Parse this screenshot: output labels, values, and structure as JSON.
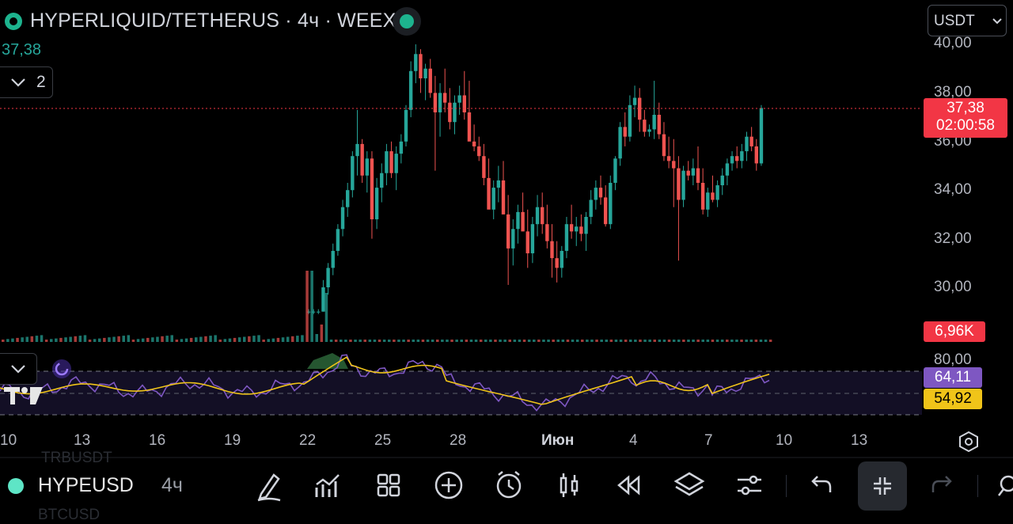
{
  "header": {
    "title": "HYPERLIQUID/TETHERUS · 4ч · WEEX",
    "last_price_label": "37,38",
    "indicator_count": "2",
    "currency": "USDT"
  },
  "price_scale": {
    "ticks": [
      "40,00",
      "38,00",
      "36,00",
      "34,00",
      "32,00",
      "30,00"
    ],
    "current_price": "37,38",
    "countdown": "02:00:58",
    "volume_badge": "6,96K",
    "rsi_upper": "80,00",
    "rsi_value": "64,11",
    "rsi_ma_value": "54,92"
  },
  "time_axis": {
    "labels": [
      "10",
      "13",
      "16",
      "19",
      "22",
      "25",
      "28",
      "Июн",
      "4",
      "7",
      "10",
      "13"
    ]
  },
  "colors": {
    "up": "#26a69a",
    "down": "#ef5350",
    "rsi_line": "#7e57c2",
    "rsi_ma": "#f0c419",
    "price_tag": "#f23645"
  },
  "toolbar": {
    "symbol": "HYPEUSD",
    "interval": "4ч",
    "ghost_above": "TRBUSDT",
    "ghost_below": "BTCUSD",
    "icons": [
      "draw-icon",
      "indicators-icon",
      "layout-icon",
      "add-icon",
      "alert-icon",
      "chart-type-icon",
      "replay-icon",
      "layers-icon",
      "settings-icon",
      "undo-icon",
      "exit-fullscreen-icon",
      "redo-icon",
      "search-icon"
    ]
  },
  "chart_data": {
    "type": "candlestick",
    "series": [
      {
        "name": "HYPERLIQUID/TETHERUS",
        "values": [
          [
            0,
            29.0,
            29.1,
            28.9,
            29.0
          ],
          [
            1,
            29.0,
            29.1,
            28.9,
            29.0
          ],
          [
            2,
            29.0,
            29.1,
            28.9,
            29.0
          ],
          [
            3,
            29.0,
            30.3,
            29.0,
            30.0
          ],
          [
            4,
            30.0,
            31.0,
            29.7,
            30.8
          ],
          [
            5,
            30.8,
            31.8,
            30.5,
            31.5
          ],
          [
            6,
            31.5,
            32.6,
            31.3,
            32.4
          ],
          [
            7,
            32.4,
            33.6,
            32.1,
            33.3
          ],
          [
            8,
            33.3,
            34.3,
            32.9,
            34.0
          ],
          [
            9,
            34.0,
            35.6,
            33.7,
            35.4
          ],
          [
            10,
            35.4,
            37.3,
            34.6,
            35.9
          ],
          [
            11,
            35.9,
            36.1,
            34.3,
            34.6
          ],
          [
            12,
            34.6,
            35.6,
            33.9,
            35.3
          ],
          [
            13,
            35.3,
            35.6,
            32.0,
            32.8
          ],
          [
            14,
            32.8,
            34.5,
            32.4,
            34.1
          ],
          [
            15,
            34.1,
            35.1,
            33.5,
            34.7
          ],
          [
            16,
            34.7,
            35.9,
            34.2,
            35.6
          ],
          [
            17,
            35.6,
            36.0,
            34.5,
            34.7
          ],
          [
            18,
            34.7,
            35.8,
            34.0,
            35.5
          ],
          [
            19,
            35.5,
            36.3,
            35.1,
            36.0
          ],
          [
            20,
            36.0,
            37.5,
            35.8,
            37.3
          ],
          [
            21,
            37.3,
            39.3,
            37.0,
            38.9
          ],
          [
            22,
            38.9,
            40.0,
            38.4,
            39.6
          ],
          [
            23,
            39.6,
            39.8,
            38.0,
            38.6
          ],
          [
            24,
            38.6,
            39.2,
            37.7,
            39.0
          ],
          [
            25,
            39.0,
            39.4,
            37.8,
            38.0
          ],
          [
            26,
            38.0,
            38.7,
            34.8,
            37.2
          ],
          [
            27,
            37.2,
            38.4,
            36.2,
            38.0
          ],
          [
            28,
            38.0,
            39.0,
            37.2,
            37.6
          ],
          [
            29,
            37.6,
            38.2,
            36.5,
            36.8
          ],
          [
            30,
            36.8,
            37.9,
            36.3,
            37.6
          ],
          [
            31,
            37.6,
            38.3,
            37.1,
            37.9
          ],
          [
            32,
            37.9,
            38.9,
            36.9,
            37.2
          ],
          [
            33,
            37.2,
            38.5,
            36.6,
            36.0
          ],
          [
            34,
            36.0,
            36.7,
            35.6,
            35.8
          ],
          [
            35,
            35.8,
            36.2,
            35.2,
            35.4
          ],
          [
            36,
            35.4,
            35.9,
            34.2,
            34.5
          ],
          [
            37,
            34.5,
            35.3,
            33.8,
            33.2
          ],
          [
            38,
            33.2,
            34.4,
            32.8,
            34.1
          ],
          [
            39,
            34.1,
            35.0,
            33.5,
            34.4
          ],
          [
            40,
            34.4,
            35.2,
            33.8,
            33.0
          ],
          [
            41,
            33.0,
            33.8,
            30.1,
            31.6
          ],
          [
            42,
            31.6,
            32.8,
            30.9,
            32.4
          ],
          [
            43,
            32.4,
            33.4,
            31.8,
            33.1
          ],
          [
            44,
            33.1,
            33.9,
            32.7,
            32.3
          ],
          [
            45,
            32.3,
            33.2,
            30.8,
            31.4
          ],
          [
            46,
            31.4,
            32.9,
            31.0,
            32.6
          ],
          [
            47,
            32.6,
            33.8,
            32.1,
            33.3
          ],
          [
            48,
            33.3,
            33.9,
            32.2,
            32.6
          ],
          [
            49,
            32.6,
            33.4,
            31.6,
            31.9
          ],
          [
            50,
            31.9,
            32.6,
            30.4,
            31.2
          ],
          [
            51,
            31.2,
            31.9,
            30.2,
            30.8
          ],
          [
            52,
            30.8,
            31.7,
            30.4,
            31.5
          ],
          [
            53,
            31.5,
            32.9,
            31.2,
            32.6
          ],
          [
            54,
            32.6,
            33.4,
            32.0,
            32.3
          ],
          [
            55,
            32.3,
            32.9,
            31.7,
            32.5
          ],
          [
            56,
            32.5,
            33.0,
            31.9,
            32.2
          ],
          [
            57,
            32.2,
            33.1,
            31.5,
            32.9
          ],
          [
            58,
            32.9,
            34.0,
            32.6,
            33.6
          ],
          [
            59,
            33.6,
            34.4,
            33.2,
            34.1
          ],
          [
            60,
            34.1,
            34.6,
            33.4,
            33.7
          ],
          [
            61,
            33.7,
            34.2,
            32.5,
            32.6
          ],
          [
            62,
            32.6,
            34.6,
            32.4,
            34.3
          ],
          [
            63,
            34.3,
            35.4,
            34.0,
            35.3
          ],
          [
            64,
            35.3,
            36.8,
            35.0,
            36.6
          ],
          [
            65,
            36.6,
            37.2,
            35.8,
            36.2
          ],
          [
            66,
            36.2,
            37.9,
            36.0,
            37.5
          ],
          [
            67,
            37.5,
            38.3,
            37.0,
            37.8
          ],
          [
            68,
            37.8,
            38.2,
            36.4,
            36.9
          ],
          [
            69,
            36.9,
            37.3,
            36.2,
            36.4
          ],
          [
            70,
            36.4,
            36.7,
            36.2,
            36.5
          ],
          [
            71,
            36.5,
            38.5,
            36.1,
            37.1
          ],
          [
            72,
            37.1,
            37.6,
            36.1,
            36.3
          ],
          [
            73,
            36.3,
            36.8,
            35.2,
            35.4
          ],
          [
            74,
            35.4,
            36.2,
            34.9,
            35.2
          ],
          [
            75,
            35.2,
            36.1,
            33.3,
            34.9
          ],
          [
            76,
            34.9,
            35.4,
            31.1,
            33.6
          ],
          [
            77,
            33.6,
            35.0,
            33.3,
            34.8
          ],
          [
            78,
            34.8,
            35.2,
            34.4,
            34.6
          ],
          [
            79,
            34.6,
            35.3,
            34.2,
            34.9
          ],
          [
            80,
            34.9,
            35.8,
            34.0,
            34.3
          ],
          [
            81,
            34.3,
            34.9,
            33.0,
            33.2
          ],
          [
            82,
            33.2,
            34.1,
            32.9,
            33.9
          ],
          [
            83,
            33.9,
            34.6,
            33.5,
            33.6
          ],
          [
            84,
            33.6,
            34.4,
            33.3,
            34.2
          ],
          [
            85,
            34.2,
            34.9,
            33.8,
            34.6
          ],
          [
            86,
            34.6,
            35.3,
            34.2,
            35.1
          ],
          [
            87,
            35.1,
            35.6,
            34.8,
            35.4
          ],
          [
            88,
            35.4,
            35.8,
            34.9,
            35.2
          ],
          [
            89,
            35.2,
            35.9,
            34.9,
            35.6
          ],
          [
            90,
            35.6,
            36.4,
            35.2,
            36.2
          ],
          [
            91,
            36.2,
            36.6,
            35.6,
            35.8
          ],
          [
            92,
            35.8,
            36.1,
            34.8,
            35.1
          ],
          [
            93,
            35.1,
            37.5,
            35.0,
            37.38
          ]
        ]
      }
    ],
    "ylim": [
      29.5,
      40.5
    ],
    "volume_last": "6,96K",
    "rsi": {
      "value": 64.11,
      "ma": 54.92,
      "upper": 80.0
    }
  }
}
